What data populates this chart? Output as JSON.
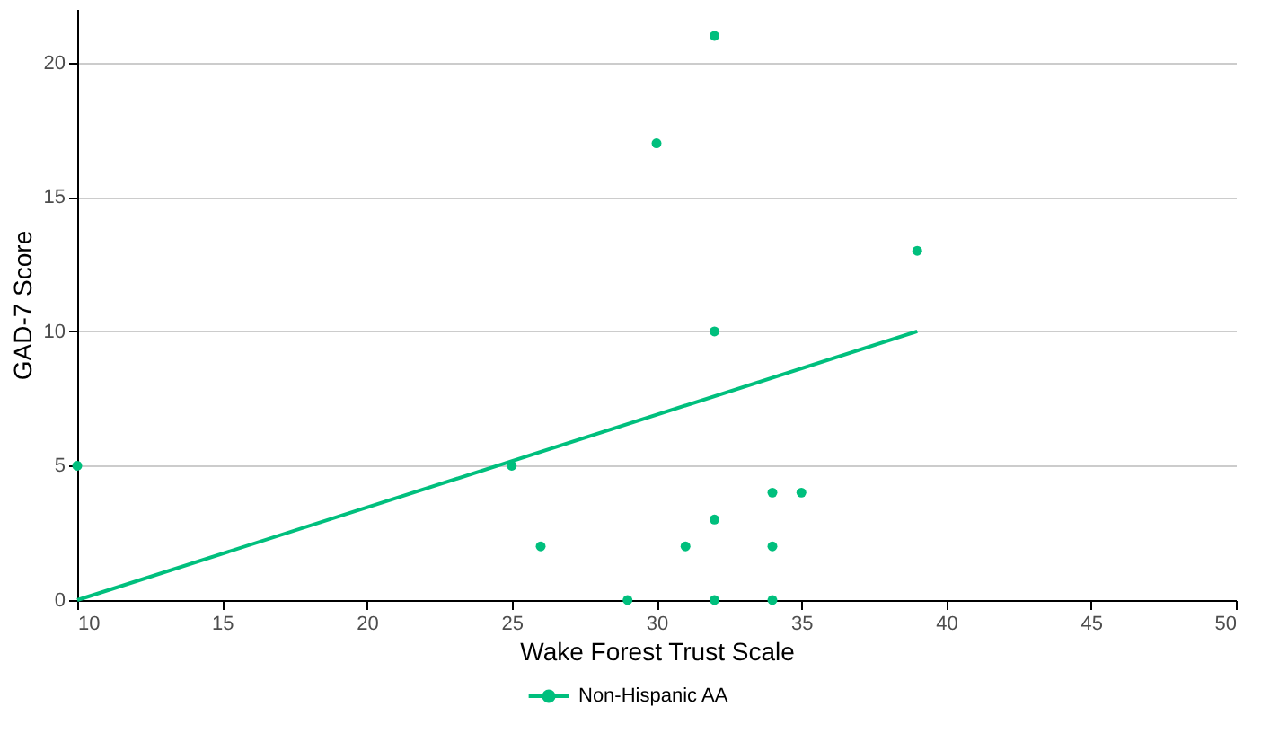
{
  "chart_data": {
    "type": "scatter",
    "xlabel": "Wake Forest Trust Scale",
    "ylabel": "GAD-7 Score",
    "xlim": [
      10,
      50
    ],
    "xticks": [
      10,
      15,
      20,
      25,
      30,
      35,
      40,
      45,
      50
    ],
    "ylim": [
      0,
      22
    ],
    "yticks": [
      0,
      5,
      10,
      15,
      20
    ],
    "grid": "y",
    "legend": "bottom",
    "series": [
      {
        "name": "Non-Hispanic AA",
        "marker": "circle",
        "color": "#00bf7d",
        "x": [
          10,
          25,
          26,
          29,
          30,
          31,
          32,
          32,
          32,
          32,
          34,
          34,
          34,
          35,
          39
        ],
        "values": [
          5,
          5,
          2,
          0,
          17,
          2,
          21,
          10,
          3,
          0,
          4,
          2,
          0,
          4,
          13
        ]
      },
      {
        "type": "line",
        "marker": "none",
        "color": "#00bf7d",
        "x": [
          10,
          39
        ],
        "values": [
          0,
          10
        ]
      }
    ]
  }
}
